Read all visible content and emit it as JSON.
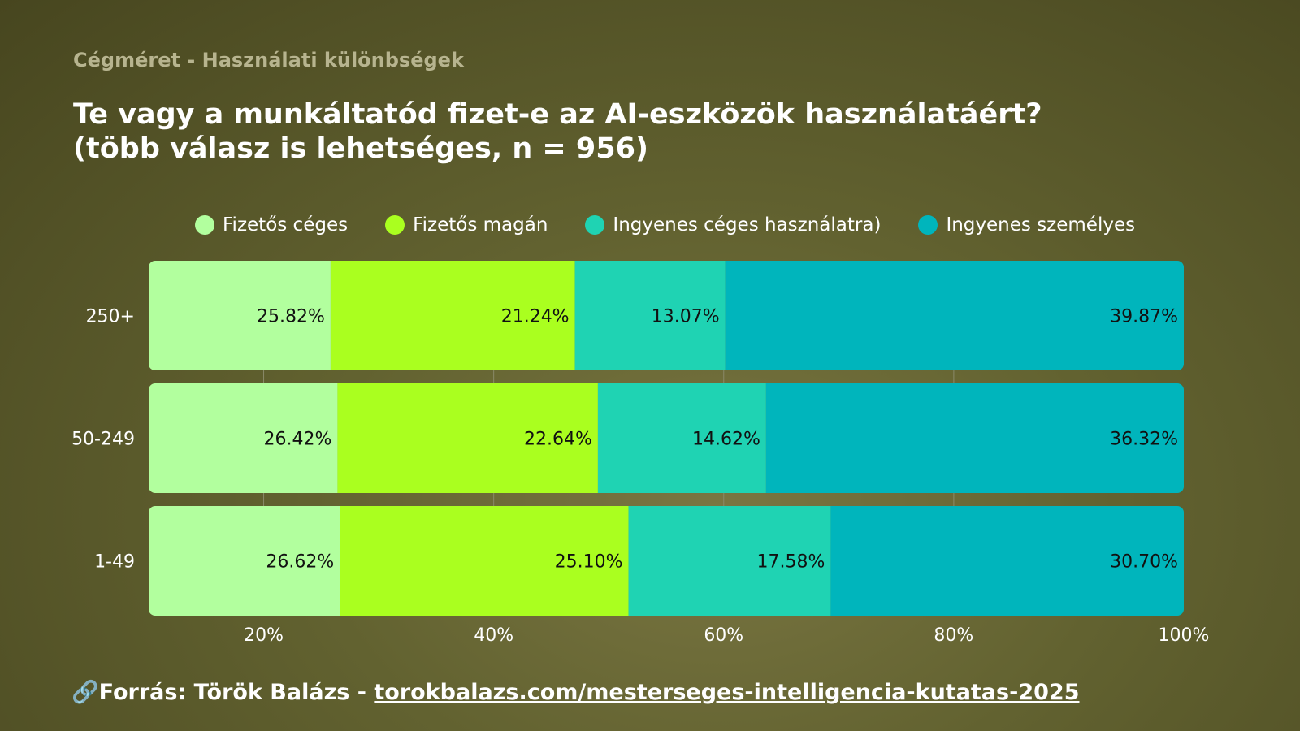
{
  "subtitle": "Cégméret - Használati különbségek",
  "title": "Te vagy a munkáltatód fizet-e az AI-eszközök használatáért? (több válasz is lehetséges, n = 956)",
  "source": {
    "prefix": "Forrás: Török Balázs - ",
    "link_text": "torokbalazs.com/mesterseges-intelligencia-kutatas-2025",
    "icon": "link-icon"
  },
  "colors": {
    "series": [
      "#b2ff9e",
      "#aaff1f",
      "#1fd3b3",
      "#00b5bc"
    ]
  },
  "chart_data": {
    "type": "bar",
    "orientation": "horizontal",
    "stacked": true,
    "categories": [
      "250+",
      "50-249",
      "1-49"
    ],
    "series": [
      {
        "name": "Fizetős céges",
        "values": [
          25.82,
          26.42,
          26.62
        ],
        "labels": [
          "25.82%",
          "26.42%",
          "26.62%"
        ]
      },
      {
        "name": "Fizetős magán",
        "values": [
          21.24,
          22.64,
          25.1
        ],
        "labels": [
          "21.24%",
          "22.64%",
          "25.10%"
        ]
      },
      {
        "name": "Ingyenes céges használatra)",
        "values": [
          13.07,
          14.62,
          17.58
        ],
        "labels": [
          "13.07%",
          "14.62%",
          "17.58%"
        ]
      },
      {
        "name": "Ingyenes személyes",
        "values": [
          39.87,
          36.32,
          30.7
        ],
        "labels": [
          "39.87%",
          "36.32%",
          "30.70%"
        ]
      }
    ],
    "xlim": [
      10,
      100
    ],
    "xticks": [
      20,
      40,
      60,
      80,
      100
    ],
    "xtick_labels": [
      "20%",
      "40%",
      "60%",
      "80%",
      "100%"
    ],
    "grid": true,
    "legend_position": "top"
  }
}
